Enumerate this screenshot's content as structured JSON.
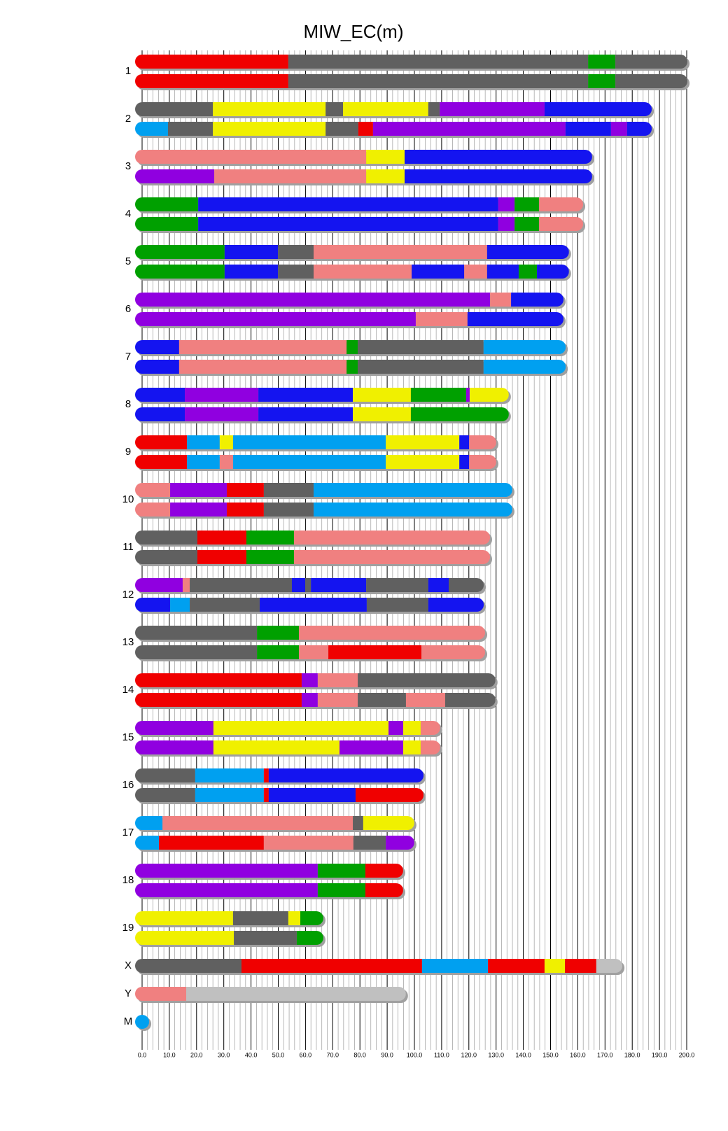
{
  "chart_data": {
    "type": "chromosome",
    "title": "MIW_EC(m)",
    "xlim": [
      0,
      200
    ],
    "xticks": [
      {
        "value": 0,
        "label": "0.0"
      },
      {
        "value": 10,
        "label": "10.0"
      },
      {
        "value": 20,
        "label": "20.0"
      },
      {
        "value": 30,
        "label": "30.0"
      },
      {
        "value": 40,
        "label": "40.0"
      },
      {
        "value": 50,
        "label": "50.0"
      },
      {
        "value": 60,
        "label": "60.0"
      },
      {
        "value": 70,
        "label": "70.0"
      },
      {
        "value": 80,
        "label": "80.0"
      },
      {
        "value": 90,
        "label": "90.0"
      },
      {
        "value": 100,
        "label": "100.0"
      },
      {
        "value": 110,
        "label": "110.0"
      },
      {
        "value": 120,
        "label": "120.0"
      },
      {
        "value": 130,
        "label": "130.0"
      },
      {
        "value": 140,
        "label": "140.0"
      },
      {
        "value": 150,
        "label": "150.0"
      },
      {
        "value": 160,
        "label": "160.0"
      },
      {
        "value": 170,
        "label": "170.0"
      },
      {
        "value": 180,
        "label": "180.0"
      },
      {
        "value": 190,
        "label": "190.0"
      },
      {
        "value": 200,
        "label": "200.0"
      }
    ],
    "grid": true,
    "shadow_color": "#a0a0a0",
    "chromosomes": [
      {
        "name": "1",
        "haplotypes": [
          {
            "breaks": [
              0,
              53.7,
              163.8,
              173.8,
              197.7
            ],
            "colors": [
              "#f00000",
              "#606060",
              "#00a000",
              "#606060"
            ]
          },
          {
            "breaks": [
              0,
              53.7,
              163.8,
              173.8,
              197.7
            ],
            "colors": [
              "#f00000",
              "#606060",
              "#00a000",
              "#606060"
            ]
          }
        ]
      },
      {
        "name": "2",
        "haplotypes": [
          {
            "breaks": [
              0,
              26.0,
              67.4,
              73.8,
              105.1,
              109.3,
              147.8,
              184.6
            ],
            "colors": [
              "#606060",
              "#f0f000",
              "#606060",
              "#f0f000",
              "#606060",
              "#9000e0",
              "#1414f0"
            ]
          },
          {
            "breaks": [
              0,
              9.5,
              26.0,
              67.4,
              79.4,
              84.8,
              155.5,
              172.2,
              178.1,
              184.6
            ],
            "colors": [
              "#00a0f0",
              "#606060",
              "#f0f000",
              "#606060",
              "#f00000",
              "#9000e0",
              "#1414f0",
              "#9000e0",
              "#1414f0"
            ]
          }
        ]
      },
      {
        "name": "3",
        "haplotypes": [
          {
            "breaks": [
              0,
              82.3,
              96.4,
              162.7
            ],
            "colors": [
              "#f08080",
              "#f0f000",
              "#1414f0"
            ]
          },
          {
            "breaks": [
              0,
              26.5,
              82.3,
              96.4,
              162.7
            ],
            "colors": [
              "#9000e0",
              "#f08080",
              "#f0f000",
              "#1414f0"
            ]
          }
        ]
      },
      {
        "name": "4",
        "haplotypes": [
          {
            "breaks": [
              0,
              20.6,
              130.8,
              136.8,
              145.8,
              159.4
            ],
            "colors": [
              "#00a000",
              "#1414f0",
              "#9000e0",
              "#00a000",
              "#f08080"
            ]
          },
          {
            "breaks": [
              0,
              20.6,
              130.8,
              136.8,
              145.8,
              159.4
            ],
            "colors": [
              "#00a000",
              "#1414f0",
              "#9000e0",
              "#00a000",
              "#f08080"
            ]
          }
        ]
      },
      {
        "name": "5",
        "haplotypes": [
          {
            "breaks": [
              0,
              30.3,
              49.9,
              63.0,
              126.7,
              154.2
            ],
            "colors": [
              "#00a000",
              "#1414f0",
              "#606060",
              "#f08080",
              "#1414f0"
            ]
          },
          {
            "breaks": [
              0,
              30.3,
              49.9,
              63.0,
              99.0,
              118.3,
              126.7,
              138.3,
              145.0,
              154.2
            ],
            "colors": [
              "#00a000",
              "#1414f0",
              "#606060",
              "#f08080",
              "#1414f0",
              "#f08080",
              "#1414f0",
              "#00a000",
              "#1414f0"
            ]
          }
        ]
      },
      {
        "name": "6",
        "haplotypes": [
          {
            "breaks": [
              0,
              127.8,
              135.5,
              152.2
            ],
            "colors": [
              "#9000e0",
              "#f08080",
              "#1414f0"
            ]
          },
          {
            "breaks": [
              0,
              100.5,
              119.5,
              152.2
            ],
            "colors": [
              "#9000e0",
              "#f08080",
              "#1414f0"
            ]
          }
        ]
      },
      {
        "name": "7",
        "haplotypes": [
          {
            "breaks": [
              0,
              13.6,
              75.1,
              79.2,
              125.4,
              153.0
            ],
            "colors": [
              "#1414f0",
              "#f08080",
              "#00a000",
              "#606060",
              "#00a0f0"
            ]
          },
          {
            "breaks": [
              0,
              13.6,
              75.1,
              79.2,
              125.4,
              153.0
            ],
            "colors": [
              "#1414f0",
              "#f08080",
              "#00a000",
              "#606060",
              "#00a0f0"
            ]
          }
        ]
      },
      {
        "name": "8",
        "haplotypes": [
          {
            "breaks": [
              0,
              15.7,
              42.7,
              77.4,
              98.7,
              119.0,
              120.3,
              132.1
            ],
            "colors": [
              "#1414f0",
              "#9000e0",
              "#1414f0",
              "#f0f000",
              "#00a000",
              "#9000e0",
              "#f0f000"
            ]
          },
          {
            "breaks": [
              0,
              15.7,
              42.7,
              77.4,
              98.7,
              132.1
            ],
            "colors": [
              "#1414f0",
              "#9000e0",
              "#1414f0",
              "#f0f000",
              "#00a000"
            ]
          }
        ]
      },
      {
        "name": "9",
        "haplotypes": [
          {
            "breaks": [
              0,
              16.5,
              28.5,
              33.4,
              89.5,
              116.5,
              120.1,
              127.5
            ],
            "colors": [
              "#f00000",
              "#00a0f0",
              "#f0f000",
              "#00a0f0",
              "#f0f000",
              "#1414f0",
              "#f08080"
            ]
          },
          {
            "breaks": [
              0,
              16.5,
              28.5,
              33.4,
              89.5,
              116.5,
              120.1,
              127.5
            ],
            "colors": [
              "#f00000",
              "#00a0f0",
              "#f08080",
              "#00a0f0",
              "#f0f000",
              "#1414f0",
              "#f08080"
            ]
          }
        ]
      },
      {
        "name": "10",
        "haplotypes": [
          {
            "breaks": [
              0,
              10.3,
              31.1,
              44.7,
              63.0,
              133.4
            ],
            "colors": [
              "#f08080",
              "#9000e0",
              "#f00000",
              "#606060",
              "#00a0f0"
            ]
          },
          {
            "breaks": [
              0,
              10.3,
              31.1,
              44.7,
              63.0,
              133.4
            ],
            "colors": [
              "#f08080",
              "#9000e0",
              "#f00000",
              "#606060",
              "#00a0f0"
            ]
          }
        ]
      },
      {
        "name": "11",
        "haplotypes": [
          {
            "breaks": [
              0,
              20.3,
              38.3,
              55.8,
              125.2
            ],
            "colors": [
              "#606060",
              "#f00000",
              "#00a000",
              "#f08080"
            ]
          },
          {
            "breaks": [
              0,
              20.3,
              38.3,
              55.8,
              125.2
            ],
            "colors": [
              "#606060",
              "#f00000",
              "#00a000",
              "#f08080"
            ]
          }
        ]
      },
      {
        "name": "12",
        "haplotypes": [
          {
            "breaks": [
              0,
              14.9,
              17.5,
              55.0,
              59.9,
              62.0,
              82.3,
              105.1,
              112.6,
              122.9
            ],
            "colors": [
              "#9000e0",
              "#f08080",
              "#606060",
              "#1414f0",
              "#606060",
              "#1414f0",
              "#606060",
              "#1414f0",
              "#606060"
            ]
          },
          {
            "breaks": [
              0,
              10.3,
              17.5,
              43.2,
              82.5,
              105.1,
              122.9
            ],
            "colors": [
              "#1414f0",
              "#00a0f0",
              "#606060",
              "#1414f0",
              "#606060",
              "#1414f0"
            ]
          }
        ]
      },
      {
        "name": "13",
        "haplotypes": [
          {
            "breaks": [
              0,
              42.2,
              57.6,
              123.4
            ],
            "colors": [
              "#606060",
              "#00a000",
              "#f08080"
            ]
          },
          {
            "breaks": [
              0,
              42.2,
              57.6,
              68.4,
              102.6,
              123.4
            ],
            "colors": [
              "#606060",
              "#00a000",
              "#f08080",
              "#f00000",
              "#f08080"
            ]
          }
        ]
      },
      {
        "name": "14",
        "haplotypes": [
          {
            "breaks": [
              0,
              58.6,
              64.5,
              79.2,
              127.2
            ],
            "colors": [
              "#f00000",
              "#9000e0",
              "#f08080",
              "#606060"
            ]
          },
          {
            "breaks": [
              0,
              58.6,
              64.5,
              79.2,
              96.9,
              111.3,
              127.2
            ],
            "colors": [
              "#f00000",
              "#9000e0",
              "#f08080",
              "#606060",
              "#f08080",
              "#606060"
            ]
          }
        ]
      },
      {
        "name": "15",
        "haplotypes": [
          {
            "breaks": [
              0,
              26.2,
              90.5,
              95.9,
              102.3,
              106.9
            ],
            "colors": [
              "#9000e0",
              "#f0f000",
              "#9000e0",
              "#f0f000",
              "#f08080"
            ]
          },
          {
            "breaks": [
              0,
              26.2,
              72.5,
              95.9,
              102.3,
              106.9
            ],
            "colors": [
              "#9000e0",
              "#f0f000",
              "#9000e0",
              "#f0f000",
              "#f08080"
            ]
          }
        ]
      },
      {
        "name": "16",
        "haplotypes": [
          {
            "breaks": [
              0,
              19.5,
              44.7,
              46.5,
              100.8
            ],
            "colors": [
              "#606060",
              "#00a0f0",
              "#f00000",
              "#1414f0"
            ]
          },
          {
            "breaks": [
              0,
              19.5,
              44.7,
              46.5,
              78.4,
              100.8
            ],
            "colors": [
              "#606060",
              "#00a0f0",
              "#f00000",
              "#1414f0",
              "#f00000"
            ]
          }
        ]
      },
      {
        "name": "17",
        "haplotypes": [
          {
            "breaks": [
              0,
              7.5,
              77.4,
              81.2,
              97.4
            ],
            "colors": [
              "#00a0f0",
              "#f08080",
              "#606060",
              "#f0f000"
            ]
          },
          {
            "breaks": [
              0,
              6.2,
              44.7,
              77.6,
              89.5,
              97.4
            ],
            "colors": [
              "#00a0f0",
              "#f00000",
              "#f08080",
              "#606060",
              "#9000e0"
            ]
          }
        ]
      },
      {
        "name": "18",
        "haplotypes": [
          {
            "breaks": [
              0,
              64.5,
              82.0,
              93.3
            ],
            "colors": [
              "#9000e0",
              "#00a000",
              "#f00000"
            ]
          },
          {
            "breaks": [
              0,
              64.5,
              82.0,
              93.3
            ],
            "colors": [
              "#9000e0",
              "#00a000",
              "#f00000"
            ]
          }
        ]
      },
      {
        "name": "19",
        "haplotypes": [
          {
            "breaks": [
              0,
              33.4,
              53.7,
              58.1,
              64.0
            ],
            "colors": [
              "#f0f000",
              "#606060",
              "#f0f000",
              "#00a000"
            ]
          },
          {
            "breaks": [
              0,
              33.7,
              56.8,
              64.0
            ],
            "colors": [
              "#f0f000",
              "#606060",
              "#00a000"
            ]
          }
        ]
      },
      {
        "name": "X",
        "haplotypes": [
          {
            "breaks": [
              0,
              36.5,
              102.8,
              127.0,
              147.8,
              155.3,
              166.8,
              173.8
            ],
            "colors": [
              "#606060",
              "#f00000",
              "#00a0f0",
              "#f00000",
              "#f0f000",
              "#f00000",
              "#c0c0c0"
            ]
          }
        ]
      },
      {
        "name": "Y",
        "haplotypes": [
          {
            "breaks": [
              0,
              16.2,
              94.3
            ],
            "colors": [
              "#f08080",
              "#c0c0c0"
            ]
          }
        ]
      },
      {
        "name": "M",
        "haplotypes": [
          {
            "breaks": [
              0,
              0.016
            ],
            "colors": [
              "#00a0f0"
            ]
          }
        ]
      }
    ]
  }
}
